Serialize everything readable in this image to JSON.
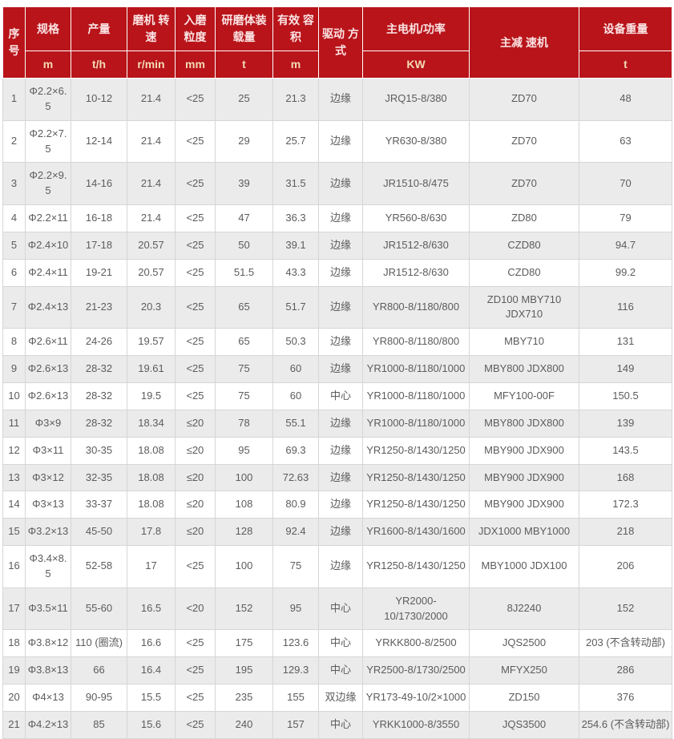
{
  "colors": {
    "header_bg": "#b8141a",
    "header_text": "#fbe4e4",
    "header_unit_text": "#f2dcb4",
    "row_alt_bg": "#ebebeb",
    "body_text": "#5c5c5c"
  },
  "table": {
    "header": {
      "serial": "序号",
      "spec": "规格",
      "spec_unit": "m",
      "output": "产量",
      "output_unit": "t/h",
      "speed": "磨机 转速",
      "speed_unit": "r/min",
      "feed": "入磨 粒度",
      "feed_unit": "mm",
      "media": "研磨体装载量",
      "media_unit": "t",
      "volume": "有效 容积",
      "volume_unit": "m",
      "drive": "驱动 方式",
      "motor": "主电机/功率",
      "motor_unit": "KW",
      "reducer": "主减 速机",
      "weight": "设备重量",
      "weight_unit": "t"
    },
    "column_keys": [
      "no",
      "spec",
      "output",
      "speed",
      "feed-size",
      "media-load",
      "volume",
      "drive-mode",
      "motor-power",
      "reducer",
      "weight"
    ],
    "rows": [
      [
        "1",
        "Φ2.2×6.5",
        "10-12",
        "21.4",
        "<25",
        "25",
        "21.3",
        "边缘",
        "JRQ15-8/380",
        "ZD70",
        "48"
      ],
      [
        "2",
        "Φ2.2×7.5",
        "12-14",
        "21.4",
        "<25",
        "29",
        "25.7",
        "边缘",
        "YR630-8/380",
        "ZD70",
        "63"
      ],
      [
        "3",
        "Φ2.2×9.5",
        "14-16",
        "21.4",
        "<25",
        "39",
        "31.5",
        "边缘",
        "JR1510-8/475",
        "ZD70",
        "70"
      ],
      [
        "4",
        "Φ2.2×11",
        "16-18",
        "21.4",
        "<25",
        "47",
        "36.3",
        "边缘",
        "YR560-8/630",
        "ZD80",
        "79"
      ],
      [
        "5",
        "Φ2.4×10",
        "17-18",
        "20.57",
        "<25",
        "50",
        "39.1",
        "边缘",
        "JR1512-8/630",
        "CZD80",
        "94.7"
      ],
      [
        "6",
        "Φ2.4×11",
        "19-21",
        "20.57",
        "<25",
        "51.5",
        "43.3",
        "边缘",
        "JR1512-8/630",
        "CZD80",
        "99.2"
      ],
      [
        "7",
        "Φ2.4×13",
        "21-23",
        "20.3",
        "<25",
        "65",
        "51.7",
        "边缘",
        "YR800-8/1180/800",
        "ZD100 MBY710 JDX710",
        "116"
      ],
      [
        "8",
        "Φ2.6×11",
        "24-26",
        "19.57",
        "<25",
        "65",
        "50.3",
        "边缘",
        "YR800-8/1180/800",
        "MBY710",
        "131"
      ],
      [
        "9",
        "Φ2.6×13",
        "28-32",
        "19.61",
        "<25",
        "75",
        "60",
        "边缘",
        "YR1000-8/1180/1000",
        "MBY800 JDX800",
        "149"
      ],
      [
        "10",
        "Φ2.6×13",
        "28-32",
        "19.5",
        "<25",
        "75",
        "60",
        "中心",
        "YR1000-8/1180/1000",
        "MFY100-00F",
        "150.5"
      ],
      [
        "11",
        "Φ3×9",
        "28-32",
        "18.34",
        "≤20",
        "78",
        "55.1",
        "边缘",
        "YR1000-8/1180/1000",
        "MBY800 JDX800",
        "139"
      ],
      [
        "12",
        "Φ3×11",
        "30-35",
        "18.08",
        "≤20",
        "95",
        "69.3",
        "边缘",
        "YR1250-8/1430/1250",
        "MBY900 JDX900",
        "143.5"
      ],
      [
        "13",
        "Φ3×12",
        "32-35",
        "18.08",
        "≤20",
        "100",
        "72.63",
        "边缘",
        "YR1250-8/1430/1250",
        "MBY900 JDX900",
        "168"
      ],
      [
        "14",
        "Φ3×13",
        "33-37",
        "18.08",
        "≤20",
        "108",
        "80.9",
        "边缘",
        "YR1250-8/1430/1250",
        "MBY900 JDX900",
        "172.3"
      ],
      [
        "15",
        "Φ3.2×13",
        "45-50",
        "17.8",
        "≤20",
        "128",
        "92.4",
        "边缘",
        "YR1600-8/1430/1600",
        "JDX1000 MBY1000",
        "218"
      ],
      [
        "16",
        "Φ3.4×8.5",
        "52-58",
        "17",
        "<25",
        "100",
        "75",
        "边缘",
        "YR1250-8/1430/1250",
        "MBY1000 JDX100",
        "206"
      ],
      [
        "17",
        "Φ3.5×11",
        "55-60",
        "16.5",
        "<20",
        "152",
        "95",
        "中心",
        "YR2000-10/1730/2000",
        "8J2240",
        "152"
      ],
      [
        "18",
        "Φ3.8×12",
        "110 (圈流)",
        "16.6",
        "<25",
        "175",
        "123.6",
        "中心",
        "YRKK800-8/2500",
        "JQS2500",
        "203 (不含转动部)"
      ],
      [
        "19",
        "Φ3.8×13",
        "66",
        "16.4",
        "<25",
        "195",
        "129.3",
        "中心",
        "YR2500-8/1730/2500",
        "MFYX250",
        "286"
      ],
      [
        "20",
        "Φ4×13",
        "90-95",
        "15.5",
        "<25",
        "235",
        "155",
        "双边缘",
        "YR173-49-10/2×1000",
        "ZD150",
        "376"
      ],
      [
        "21",
        "Φ4.2×13",
        "85",
        "15.6",
        "<25",
        "240",
        "157",
        "中心",
        "YRKK1000-8/3550",
        "JQS3500",
        "254.6 (不含转动部)"
      ]
    ]
  }
}
